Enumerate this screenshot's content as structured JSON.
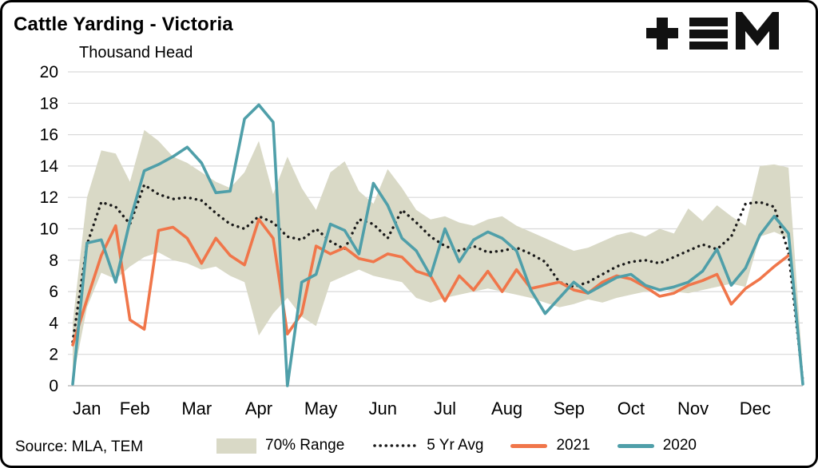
{
  "footer": {
    "source": "Source: MLA, TEM"
  },
  "logo": {
    "icon": "tem-logo"
  },
  "legend": {
    "range_label": "70% Range",
    "avg_label": "5 Yr Avg",
    "y2021_label": "2021",
    "y2020_label": "2020"
  },
  "chart_data": {
    "type": "line",
    "title": "Cattle Yarding - Victoria",
    "ylabel": "Thousand Head",
    "xlabel": "",
    "ylim": [
      0,
      20
    ],
    "yticks": [
      0,
      2,
      4,
      6,
      8,
      10,
      12,
      14,
      16,
      18,
      20
    ],
    "x_labels": [
      "Jan",
      "Feb",
      "Mar",
      "Apr",
      "May",
      "Jun",
      "Jul",
      "Aug",
      "Sep",
      "Oct",
      "Nov",
      "Dec"
    ],
    "weeks": 52,
    "grid": "horizontal",
    "legend_position": "bottom",
    "band": {
      "name": "70% Range",
      "color": "#d9d9c6",
      "upper": [
        4.0,
        12.0,
        15.0,
        14.8,
        13.0,
        16.3,
        15.6,
        14.6,
        14.2,
        13.6,
        13.0,
        12.6,
        13.6,
        15.6,
        12.2,
        14.6,
        12.6,
        11.2,
        13.6,
        14.3,
        12.4,
        11.6,
        13.8,
        12.6,
        11.2,
        10.6,
        10.8,
        10.4,
        10.2,
        10.6,
        10.8,
        10.2,
        9.8,
        9.4,
        9.0,
        8.6,
        8.8,
        9.2,
        9.6,
        9.8,
        9.5,
        10.0,
        9.7,
        11.3,
        10.5,
        11.5,
        10.8,
        10.2,
        14.0,
        14.1,
        13.9,
        1.0
      ],
      "lower": [
        0.3,
        5.0,
        7.2,
        6.8,
        7.6,
        8.2,
        8.5,
        8.0,
        7.8,
        7.4,
        7.6,
        7.0,
        6.6,
        3.2,
        4.6,
        5.6,
        4.4,
        3.8,
        6.6,
        7.0,
        7.4,
        7.0,
        6.8,
        6.6,
        5.6,
        5.3,
        5.6,
        5.8,
        6.0,
        6.2,
        6.0,
        5.8,
        5.6,
        5.3,
        5.0,
        5.2,
        5.5,
        5.3,
        5.6,
        5.8,
        6.0,
        6.2,
        6.0,
        5.9,
        6.1,
        6.3,
        6.5,
        6.3,
        9.5,
        9.8,
        9.4,
        0.2
      ]
    },
    "series": [
      {
        "name": "5 Yr Avg",
        "color": "#1a1a1a",
        "style": "dotted",
        "values": [
          2.8,
          9.0,
          11.7,
          11.4,
          10.3,
          12.8,
          12.2,
          11.9,
          12.0,
          11.8,
          11.0,
          10.3,
          10.0,
          10.8,
          10.4,
          9.5,
          9.3,
          10.0,
          9.2,
          8.7,
          10.6,
          10.3,
          9.4,
          11.2,
          10.4,
          9.5,
          8.9,
          8.6,
          8.9,
          8.5,
          8.6,
          8.8,
          8.4,
          7.9,
          6.6,
          6.3,
          6.6,
          7.1,
          7.6,
          7.9,
          8.0,
          7.8,
          8.2,
          8.6,
          9.0,
          8.7,
          9.5,
          11.6,
          11.7,
          11.4,
          8.5,
          0.3
        ]
      },
      {
        "name": "2021",
        "color": "#f0764a",
        "style": "solid",
        "values": [
          2.6,
          5.5,
          8.3,
          10.2,
          4.2,
          3.6,
          9.9,
          10.1,
          9.4,
          7.8,
          9.4,
          8.3,
          7.7,
          10.6,
          9.4,
          3.3,
          4.6,
          8.9,
          8.4,
          8.8,
          8.1,
          7.9,
          8.4,
          8.2,
          7.3,
          7.0,
          5.4,
          7.0,
          6.1,
          7.3,
          6.0,
          7.4,
          6.2,
          6.4,
          6.6,
          6.1,
          5.9,
          6.6,
          7.0,
          6.8,
          6.3,
          5.7,
          5.9,
          6.4,
          6.7,
          7.1,
          5.2,
          6.2,
          6.8,
          7.6,
          8.3,
          null
        ]
      },
      {
        "name": "2020",
        "color": "#4f9fa9",
        "style": "solid",
        "values": [
          0.1,
          9.1,
          9.3,
          6.6,
          10.5,
          13.7,
          14.1,
          14.6,
          15.2,
          14.2,
          12.3,
          12.4,
          17.0,
          17.9,
          16.8,
          0.0,
          6.6,
          7.1,
          10.3,
          9.9,
          8.4,
          12.9,
          11.5,
          9.4,
          8.6,
          7.0,
          10.0,
          7.9,
          9.3,
          9.8,
          9.4,
          8.6,
          6.1,
          4.6,
          5.6,
          6.6,
          5.9,
          6.4,
          6.9,
          7.1,
          6.4,
          6.1,
          6.3,
          6.6,
          7.3,
          8.7,
          6.4,
          7.5,
          9.6,
          10.8,
          9.7,
          0.1
        ]
      }
    ]
  }
}
